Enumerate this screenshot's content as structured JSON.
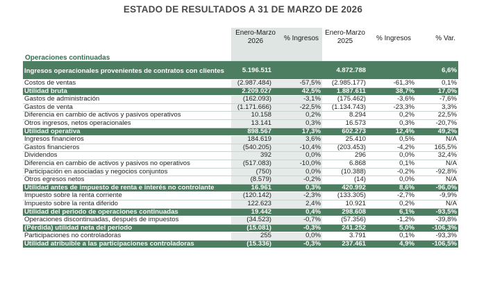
{
  "title": "ESTADO DE RESULTADOS A 31 DE MARZO DE 2026",
  "columns": {
    "c1_line1": "Enero-Marzo",
    "c1_line2": "2026",
    "c2": "% Ingresos",
    "c3_line1": "Enero-Marzo",
    "c3_line2": "2025",
    "c4": "% Ingresos",
    "c5": "% Var."
  },
  "section_title": "Operaciones continuadas",
  "rows": [
    {
      "label": "Ingresos operacionales provenientes de contratos con clientes",
      "v2026": "5.196.511",
      "p2026": "",
      "v2025": "4.872.788",
      "p2025": "",
      "var": "6,6%",
      "bold": true
    },
    {
      "label": "Costos de ventas",
      "v2026": "(2.987.484)",
      "p2026": "-57,5%",
      "v2025": "(2.985.177)",
      "p2025": "-61,3%",
      "var": "0,1%",
      "bold": false
    },
    {
      "label": "Utilidad bruta",
      "v2026": "2.209.027",
      "p2026": "42,5%",
      "v2025": "1.887.611",
      "p2025": "38,7%",
      "var": "17,0%",
      "bold": true
    },
    {
      "label": "Gastos de administración",
      "v2026": "(162.093)",
      "p2026": "-3,1%",
      "v2025": "(175.462)",
      "p2025": "-3,6%",
      "var": "-7,6%",
      "bold": false
    },
    {
      "label": "Gastos de venta",
      "v2026": "(1.171.666)",
      "p2026": "-22,5%",
      "v2025": "(1.134.743)",
      "p2025": "-23,3%",
      "var": "3,3%",
      "bold": false
    },
    {
      "label": "Diferencia en cambio de activos y pasivos operativos",
      "v2026": "10.158",
      "p2026": "0,2%",
      "v2025": "8.294",
      "p2025": "0,2%",
      "var": "22,5%",
      "bold": false
    },
    {
      "label": "Otros ingresos, netos operacionales",
      "v2026": "13.141",
      "p2026": "0,3%",
      "v2025": "16.573",
      "p2025": "0,3%",
      "var": "-20,7%",
      "bold": false
    },
    {
      "label": "Utilidad operativa",
      "v2026": "898.567",
      "p2026": "17,3%",
      "v2025": "602.273",
      "p2025": "12,4%",
      "var": "49,2%",
      "bold": true
    },
    {
      "label": "Ingresos financieros",
      "v2026": "184.619",
      "p2026": "3,6%",
      "v2025": "25.410",
      "p2025": "0,5%",
      "var": "N/A",
      "bold": false
    },
    {
      "label": "Gastos financieros",
      "v2026": "(540.205)",
      "p2026": "-10,4%",
      "v2025": "(203.453)",
      "p2025": "-4,2%",
      "var": "165,5%",
      "bold": false
    },
    {
      "label": "Dividendos",
      "v2026": "392",
      "p2026": "0,0%",
      "v2025": "296",
      "p2025": "0,0%",
      "var": "32,4%",
      "bold": false
    },
    {
      "label": "Diferencia en cambio de activos y pasivos no operativos",
      "v2026": "(517.083)",
      "p2026": "-10,0%",
      "v2025": "6.868",
      "p2025": "0,1%",
      "var": "N/A",
      "bold": false
    },
    {
      "label": "Participación en asociadas y negocios conjuntos",
      "v2026": "(750)",
      "p2026": "0,0%",
      "v2025": "(10.388)",
      "p2025": "-0,2%",
      "var": "-92,8%",
      "bold": false
    },
    {
      "label": "Otros egresos netos",
      "v2026": "(8.579)",
      "p2026": "-0,2%",
      "v2025": "(14)",
      "p2025": "0,0%",
      "var": "N/A",
      "bold": false
    },
    {
      "label": "Utilidad antes de impuesto de renta e interés no controlante",
      "v2026": "16.961",
      "p2026": "0,3%",
      "v2025": "420.992",
      "p2025": "8,6%",
      "var": "-96,0%",
      "bold": true
    },
    {
      "label": "Impuesto sobre la renta corriente",
      "v2026": "(120.142)",
      "p2026": "-2,3%",
      "v2025": "(133.305)",
      "p2025": "-2,7%",
      "var": "-9,9%",
      "bold": false
    },
    {
      "label": "Impuesto sobre la renta diferido",
      "v2026": "122.623",
      "p2026": "2,4%",
      "v2025": "10.921",
      "p2025": "0,2%",
      "var": "N/A",
      "bold": false
    },
    {
      "label": "Utilidad del periodo de operaciones continuadas",
      "v2026": "19.442",
      "p2026": "0,4%",
      "v2025": "298.608",
      "p2025": "6,1%",
      "var": "-93,5%",
      "bold": true
    },
    {
      "label": "Operaciones discontinuadas, después de impuestos",
      "v2026": "(34.523)",
      "p2026": "-0,7%",
      "v2025": "(57.356)",
      "p2025": "-1,2%",
      "var": "-39,8%",
      "bold": false
    },
    {
      "label": "(Pérdida) utilidad neta del periodo",
      "v2026": "(15.081)",
      "p2026": "-0,3%",
      "v2025": "241.252",
      "p2025": "5,0%",
      "var": "-106,3%",
      "bold": true
    },
    {
      "label": "Participaciones no controladoras",
      "v2026": "255",
      "p2026": "0,0%",
      "v2025": "3.791",
      "p2025": "0,1%",
      "var": "-93,3%",
      "bold": false
    },
    {
      "label": "Utilidad atribuible a las participaciones controladoras",
      "v2026": "(15.336)",
      "p2026": "-0,3%",
      "v2025": "237.461",
      "p2025": "4,9%",
      "var": "-106,5%",
      "bold": true
    }
  ]
}
